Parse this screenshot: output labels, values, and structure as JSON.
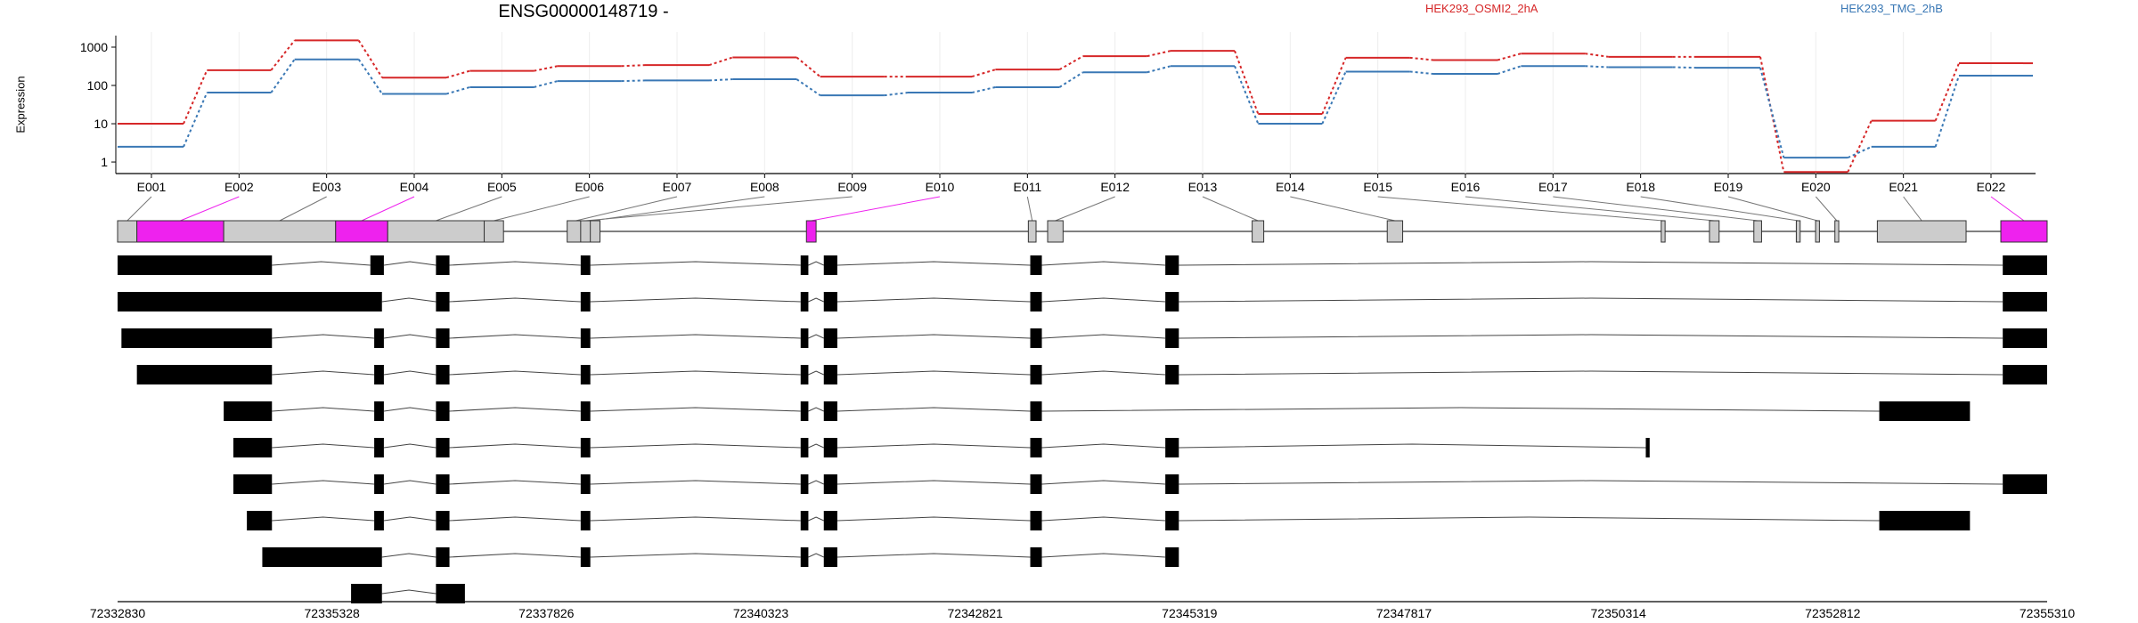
{
  "title": "ENSG00000148719 -",
  "ylabel": "Expression",
  "colors": {
    "series0": "#d62728",
    "series1": "#3a78b5",
    "highlight": "#ee22ee",
    "exon": "#cccccc",
    "transcript": "#000000"
  },
  "chart_data": {
    "type": "line",
    "yscale": "log",
    "yticks": [
      "1",
      "10",
      "100",
      "1000"
    ],
    "ylim": [
      0.5,
      1800
    ],
    "grid": true,
    "legend_position": "top-right",
    "categories": [
      "E001",
      "E002",
      "E003",
      "E004",
      "E005",
      "E006",
      "E007",
      "E008",
      "E009",
      "E010",
      "E011",
      "E012",
      "E013",
      "E014",
      "E015",
      "E016",
      "E017",
      "E018",
      "E019",
      "E020",
      "E021",
      "E022"
    ],
    "series": [
      {
        "name": "HEK293_OSMI2_2hA",
        "values": [
          10,
          250,
          1500,
          160,
          240,
          320,
          340,
          540,
          170,
          170,
          260,
          580,
          800,
          18,
          530,
          460,
          680,
          560,
          560,
          0.55,
          12,
          380
        ]
      },
      {
        "name": "HEK293_TMG_2hB",
        "values": [
          2.5,
          65,
          480,
          60,
          90,
          130,
          135,
          145,
          55,
          65,
          90,
          220,
          320,
          10,
          230,
          200,
          320,
          300,
          290,
          1.3,
          2.5,
          180
        ]
      }
    ],
    "genomic_ticks": [
      "72332830",
      "72335328",
      "72337826",
      "72340323",
      "72342821",
      "72345319",
      "72347817",
      "72350314",
      "72352812",
      "72355310"
    ],
    "exon_highlight": [
      false,
      true,
      false,
      true,
      false,
      false,
      false,
      false,
      false,
      true,
      false,
      false,
      false,
      false,
      false,
      false,
      false,
      false,
      false,
      false,
      false,
      true
    ],
    "transcripts_count": 10
  }
}
